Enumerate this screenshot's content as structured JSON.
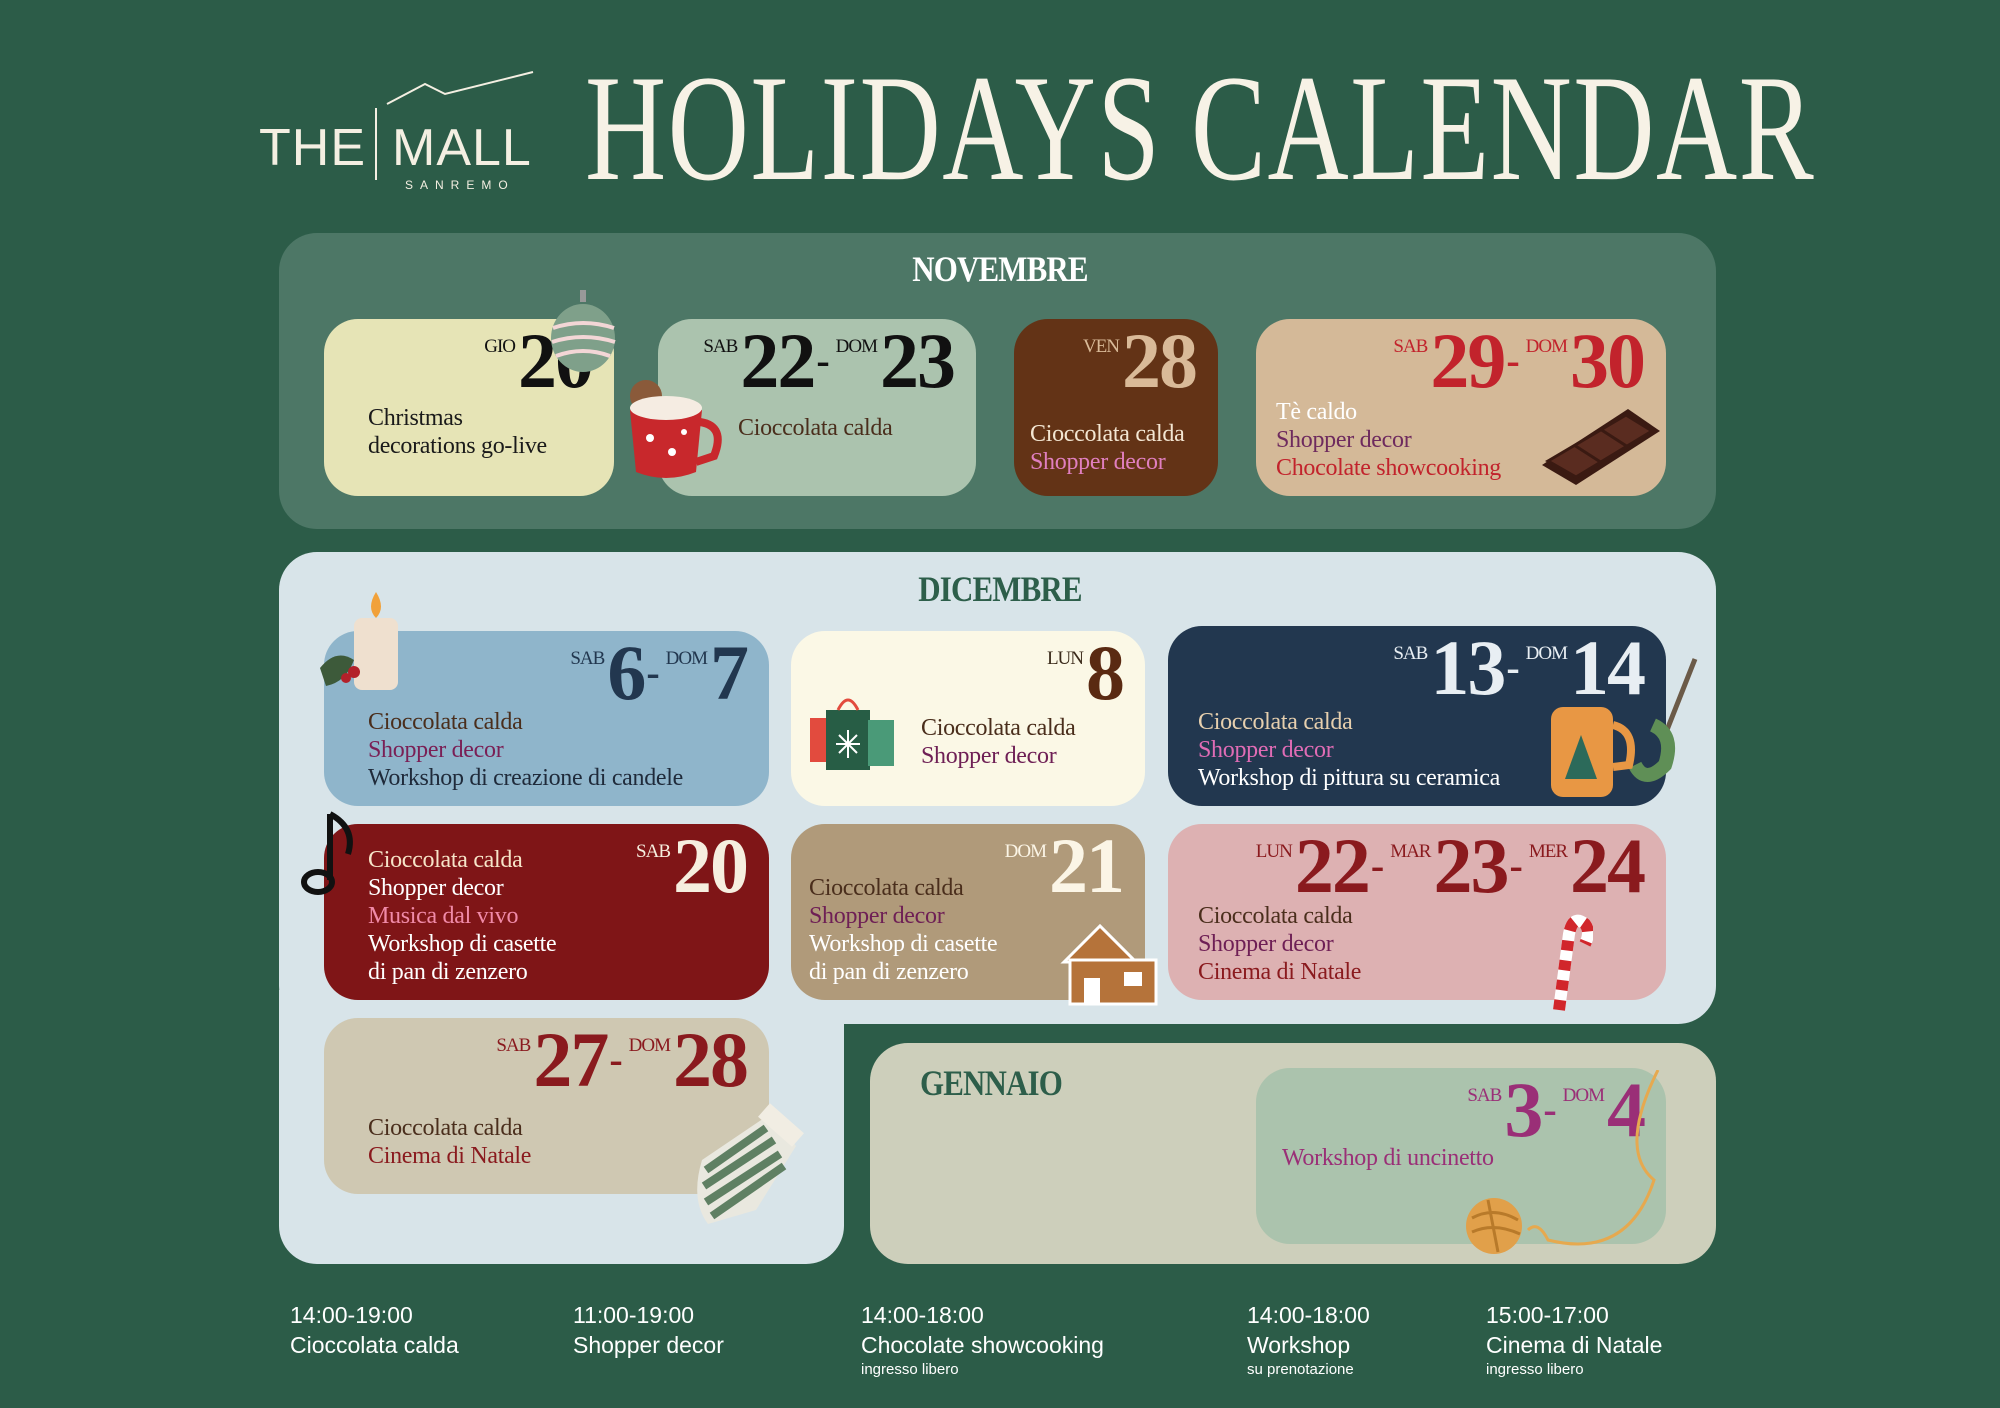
{
  "logo": {
    "the": "THE",
    "mall": "MALL",
    "city": "SANREMO"
  },
  "title": "HOLIDAYS CALENDAR",
  "months": {
    "nov": "NOVEMBRE",
    "dic": "DICEMBRE",
    "gen": "GENNAIO"
  },
  "cards": [
    {
      "id": "nov-20",
      "bg": "#e6e4b6",
      "date": [
        {
          "dow": "GIO",
          "num": "20"
        }
      ],
      "date_color": "#111111",
      "dow_color": "#111111",
      "lines": [
        {
          "text": "Christmas",
          "color": "#1a1a1a"
        },
        {
          "text": "decorations go-live",
          "color": "#1a1a1a"
        }
      ]
    },
    {
      "id": "nov-22",
      "bg": "#abc3ae",
      "date": [
        {
          "dow": "SAB",
          "num": "22"
        },
        {
          "dow": "DOM",
          "num": "23"
        }
      ],
      "date_color": "#111111",
      "dow_color": "#111111",
      "lines": [
        {
          "text": "Cioccolata calda",
          "color": "#4a2e1c"
        }
      ]
    },
    {
      "id": "nov-28",
      "bg": "#633316",
      "date": [
        {
          "dow": "VEN",
          "num": "28"
        }
      ],
      "date_color": "#d9ba98",
      "dow_color": "#d9ba98",
      "lines": [
        {
          "text": "Cioccolata calda",
          "color": "#f3e6d2"
        },
        {
          "text": "Shopper decor",
          "color": "#e07fbf"
        }
      ]
    },
    {
      "id": "nov-29",
      "bg": "#d4b998",
      "date": [
        {
          "dow": "SAB",
          "num": "29"
        },
        {
          "dow": "DOM",
          "num": "30"
        }
      ],
      "date_color": "#c2232c",
      "dow_color": "#c2232c",
      "lines": [
        {
          "text": "Tè caldo",
          "color": "#ffffff"
        },
        {
          "text": "Shopper decor",
          "color": "#6e2a5e"
        },
        {
          "text": "Chocolate showcooking",
          "color": "#c2232c"
        }
      ]
    },
    {
      "id": "dic-6",
      "bg": "#8fb5cb",
      "date": [
        {
          "dow": "SAB",
          "num": "6"
        },
        {
          "dow": "DOM",
          "num": "7"
        }
      ],
      "date_color": "#22374f",
      "dow_color": "#22374f",
      "lines": [
        {
          "text": "Cioccolata calda",
          "color": "#4a2e1c"
        },
        {
          "text": "Shopper decor",
          "color": "#7a1f55"
        },
        {
          "text": "Workshop di creazione di candele",
          "color": "#1f2a3a"
        }
      ]
    },
    {
      "id": "dic-8",
      "bg": "#fbf8e6",
      "date": [
        {
          "dow": "LUN",
          "num": "8"
        }
      ],
      "date_color": "#5a2a12",
      "dow_color": "#3a2a1a",
      "lines": [
        {
          "text": "Cioccolata calda",
          "color": "#4a2e1c"
        },
        {
          "text": "Shopper decor",
          "color": "#6e1f55"
        }
      ]
    },
    {
      "id": "dic-13",
      "bg": "#22374f",
      "date": [
        {
          "dow": "SAB",
          "num": "13"
        },
        {
          "dow": "DOM",
          "num": "14"
        }
      ],
      "date_color": "#e8eef3",
      "dow_color": "#e8eef3",
      "lines": [
        {
          "text": "Cioccolata calda",
          "color": "#e6cfae"
        },
        {
          "text": "Shopper decor",
          "color": "#e06cb5"
        },
        {
          "text": "Workshop di pittura su ceramica",
          "color": "#ffffff"
        }
      ]
    },
    {
      "id": "dic-20",
      "bg": "#7f1517",
      "date": [
        {
          "dow": "SAB",
          "num": "20"
        }
      ],
      "date_color": "#f6eedf",
      "dow_color": "#f6eedf",
      "lines": [
        {
          "text": "Cioccolata calda",
          "color": "#f6e4c8"
        },
        {
          "text": "Shopper decor",
          "color": "#ffffff"
        },
        {
          "text": "Musica dal vivo",
          "color": "#f08aa8"
        },
        {
          "text": "Workshop di casette",
          "color": "#ffffff"
        },
        {
          "text": "di pan di zenzero",
          "color": "#ffffff"
        }
      ]
    },
    {
      "id": "dic-21",
      "bg": "#b09a7a",
      "date": [
        {
          "dow": "DOM",
          "num": "21"
        }
      ],
      "date_color": "#fbf5e6",
      "dow_color": "#fbf5e6",
      "lines": [
        {
          "text": "Cioccolata calda",
          "color": "#4a2e1c"
        },
        {
          "text": "Shopper decor",
          "color": "#6e1f55"
        },
        {
          "text": "Workshop di casette",
          "color": "#ffffff"
        },
        {
          "text": "di pan di zenzero",
          "color": "#ffffff"
        }
      ]
    },
    {
      "id": "dic-22",
      "bg": "#ddb1b2",
      "date": [
        {
          "dow": "LUN",
          "num": "22"
        },
        {
          "dow": "MAR",
          "num": "23"
        },
        {
          "dow": "MER",
          "num": "24"
        }
      ],
      "date_color": "#8a1a1e",
      "dow_color": "#8a1a1e",
      "lines": [
        {
          "text": "Cioccolata calda",
          "color": "#4a2e1c"
        },
        {
          "text": "Shopper decor",
          "color": "#6e1f55"
        },
        {
          "text": "Cinema di Natale",
          "color": "#8a1a1e"
        }
      ]
    },
    {
      "id": "dic-27",
      "bg": "#cfc8b2",
      "date": [
        {
          "dow": "SAB",
          "num": "27"
        },
        {
          "dow": "DOM",
          "num": "28"
        }
      ],
      "date_color": "#8a1a1e",
      "dow_color": "#8a1a1e",
      "lines": [
        {
          "text": "Cioccolata calda",
          "color": "#4a2e1c"
        },
        {
          "text": "Cinema di Natale",
          "color": "#8a1a1e"
        }
      ]
    },
    {
      "id": "gen-3",
      "bg": "#abc3ad",
      "date": [
        {
          "dow": "SAB",
          "num": "3"
        },
        {
          "dow": "DOM",
          "num": "4"
        }
      ],
      "date_color": "#9a2f77",
      "dow_color": "#9a2f77",
      "lines": [
        {
          "text": "Workshop di uncinetto",
          "color": "#9a2f77"
        }
      ]
    }
  ],
  "legend": [
    {
      "time": "14:00-19:00",
      "label": "Cioccolata calda",
      "sub": ""
    },
    {
      "time": "11:00-19:00",
      "label": "Shopper decor",
      "sub": ""
    },
    {
      "time": "14:00-18:00",
      "label": "Chocolate showcooking",
      "sub": "ingresso libero"
    },
    {
      "time": "14:00-18:00",
      "label": "Workshop",
      "sub": "su prenotazione"
    },
    {
      "time": "15:00-17:00",
      "label": "Cinema di Natale",
      "sub": "ingresso libero"
    }
  ],
  "colors": {
    "background": "#2c5c48",
    "nov_panel": "#4d7766",
    "dic_panel": "#d8e4e9",
    "gen_panel": "#cdcfbb"
  }
}
